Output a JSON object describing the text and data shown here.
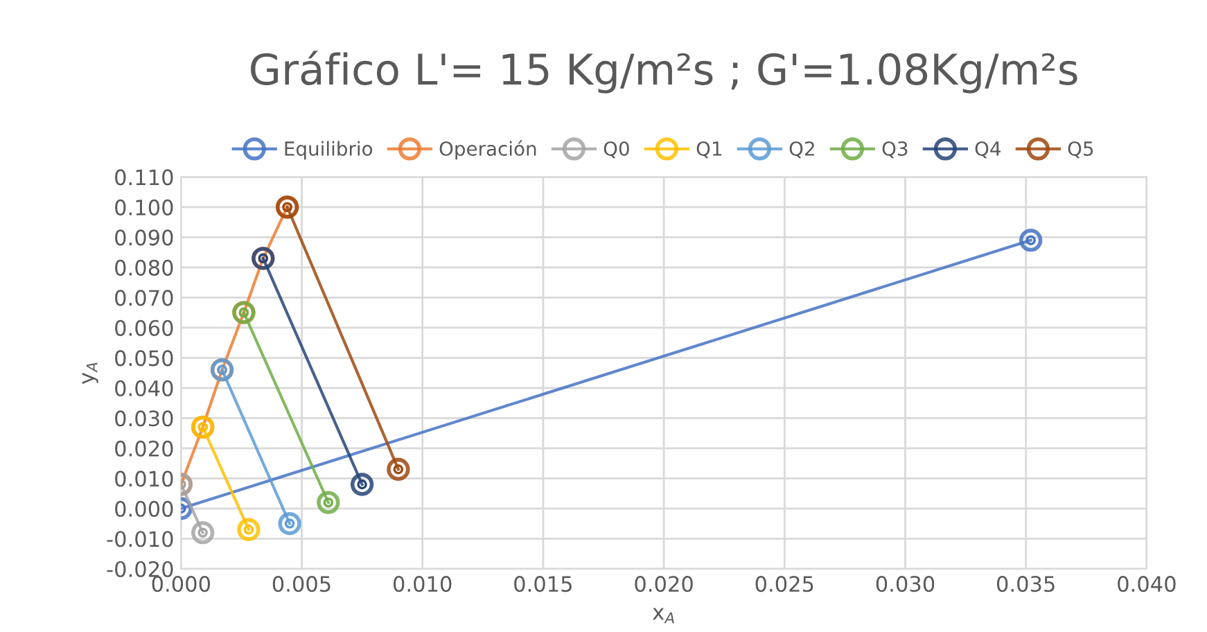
{
  "chart_data": {
    "type": "line",
    "title": "Gráfico L'= 15 Kg/m²s ; G'=1.08Kg/m²s",
    "xlabel": "x$_{A}$",
    "ylabel": "y$_{A}$",
    "series": [
      {
        "name": "Equilibrio",
        "color": "#4472c4",
        "x": [
          0,
          0.0352
        ],
        "values": [
          0,
          0.089
        ]
      },
      {
        "name": "Operación",
        "color": "#ed7d31",
        "x": [
          0,
          0.0009,
          0.0017,
          0.0026,
          0.0034,
          0.0044
        ],
        "values": [
          0.008,
          0.027,
          0.046,
          0.065,
          0.083,
          0.1
        ]
      },
      {
        "name": "Q0",
        "color": "#a5a5a5",
        "x": [
          0,
          0.0009
        ],
        "values": [
          0.008,
          -0.008
        ]
      },
      {
        "name": "Q1",
        "color": "#ffc000",
        "x": [
          0.0009,
          0.0028
        ],
        "values": [
          0.027,
          -0.007
        ]
      },
      {
        "name": "Q2",
        "color": "#5b9bd5",
        "x": [
          0.0017,
          0.0045
        ],
        "values": [
          0.046,
          -0.005
        ]
      },
      {
        "name": "Q3",
        "color": "#70ad47",
        "x": [
          0.0026,
          0.0061
        ],
        "values": [
          0.065,
          0.002
        ]
      },
      {
        "name": "Q4",
        "color": "#264478",
        "x": [
          0.0034,
          0.0075
        ],
        "values": [
          0.083,
          0.008
        ]
      },
      {
        "name": "Q5",
        "color": "#9e480e",
        "x": [
          0.0044,
          0.009
        ],
        "values": [
          0.1,
          0.013
        ]
      }
    ],
    "xlim": [
      0,
      0.04
    ],
    "xticks": [
      {
        "value": 0,
        "label": "0.000"
      },
      {
        "value": 0.005,
        "label": "0.005"
      },
      {
        "value": 0.01,
        "label": "0.010"
      },
      {
        "value": 0.015,
        "label": "0.015"
      },
      {
        "value": 0.02,
        "label": "0.020"
      },
      {
        "value": 0.025,
        "label": "0.025"
      },
      {
        "value": 0.03,
        "label": "0.030"
      },
      {
        "value": 0.035,
        "label": "0.035"
      },
      {
        "value": 0.04,
        "label": "0.040"
      }
    ],
    "ylim": [
      -0.02,
      0.11
    ],
    "yticks": [
      {
        "value": -0.02,
        "label": "-0.020"
      },
      {
        "value": -0.01,
        "label": "-0.010"
      },
      {
        "value": 0,
        "label": "0.000"
      },
      {
        "value": 0.01,
        "label": "0.010"
      },
      {
        "value": 0.02,
        "label": "0.020"
      },
      {
        "value": 0.03,
        "label": "0.030"
      },
      {
        "value": 0.04,
        "label": "0.040"
      },
      {
        "value": 0.05,
        "label": "0.050"
      },
      {
        "value": 0.06,
        "label": "0.060"
      },
      {
        "value": 0.07,
        "label": "0.070"
      },
      {
        "value": 0.08,
        "label": "0.080"
      },
      {
        "value": 0.09,
        "label": "0.090"
      },
      {
        "value": 0.1,
        "label": "0.100"
      },
      {
        "value": 0.11,
        "label": "0.110"
      }
    ],
    "grid": true,
    "legend": "top",
    "marker": "circle",
    "line_style": "solid"
  }
}
